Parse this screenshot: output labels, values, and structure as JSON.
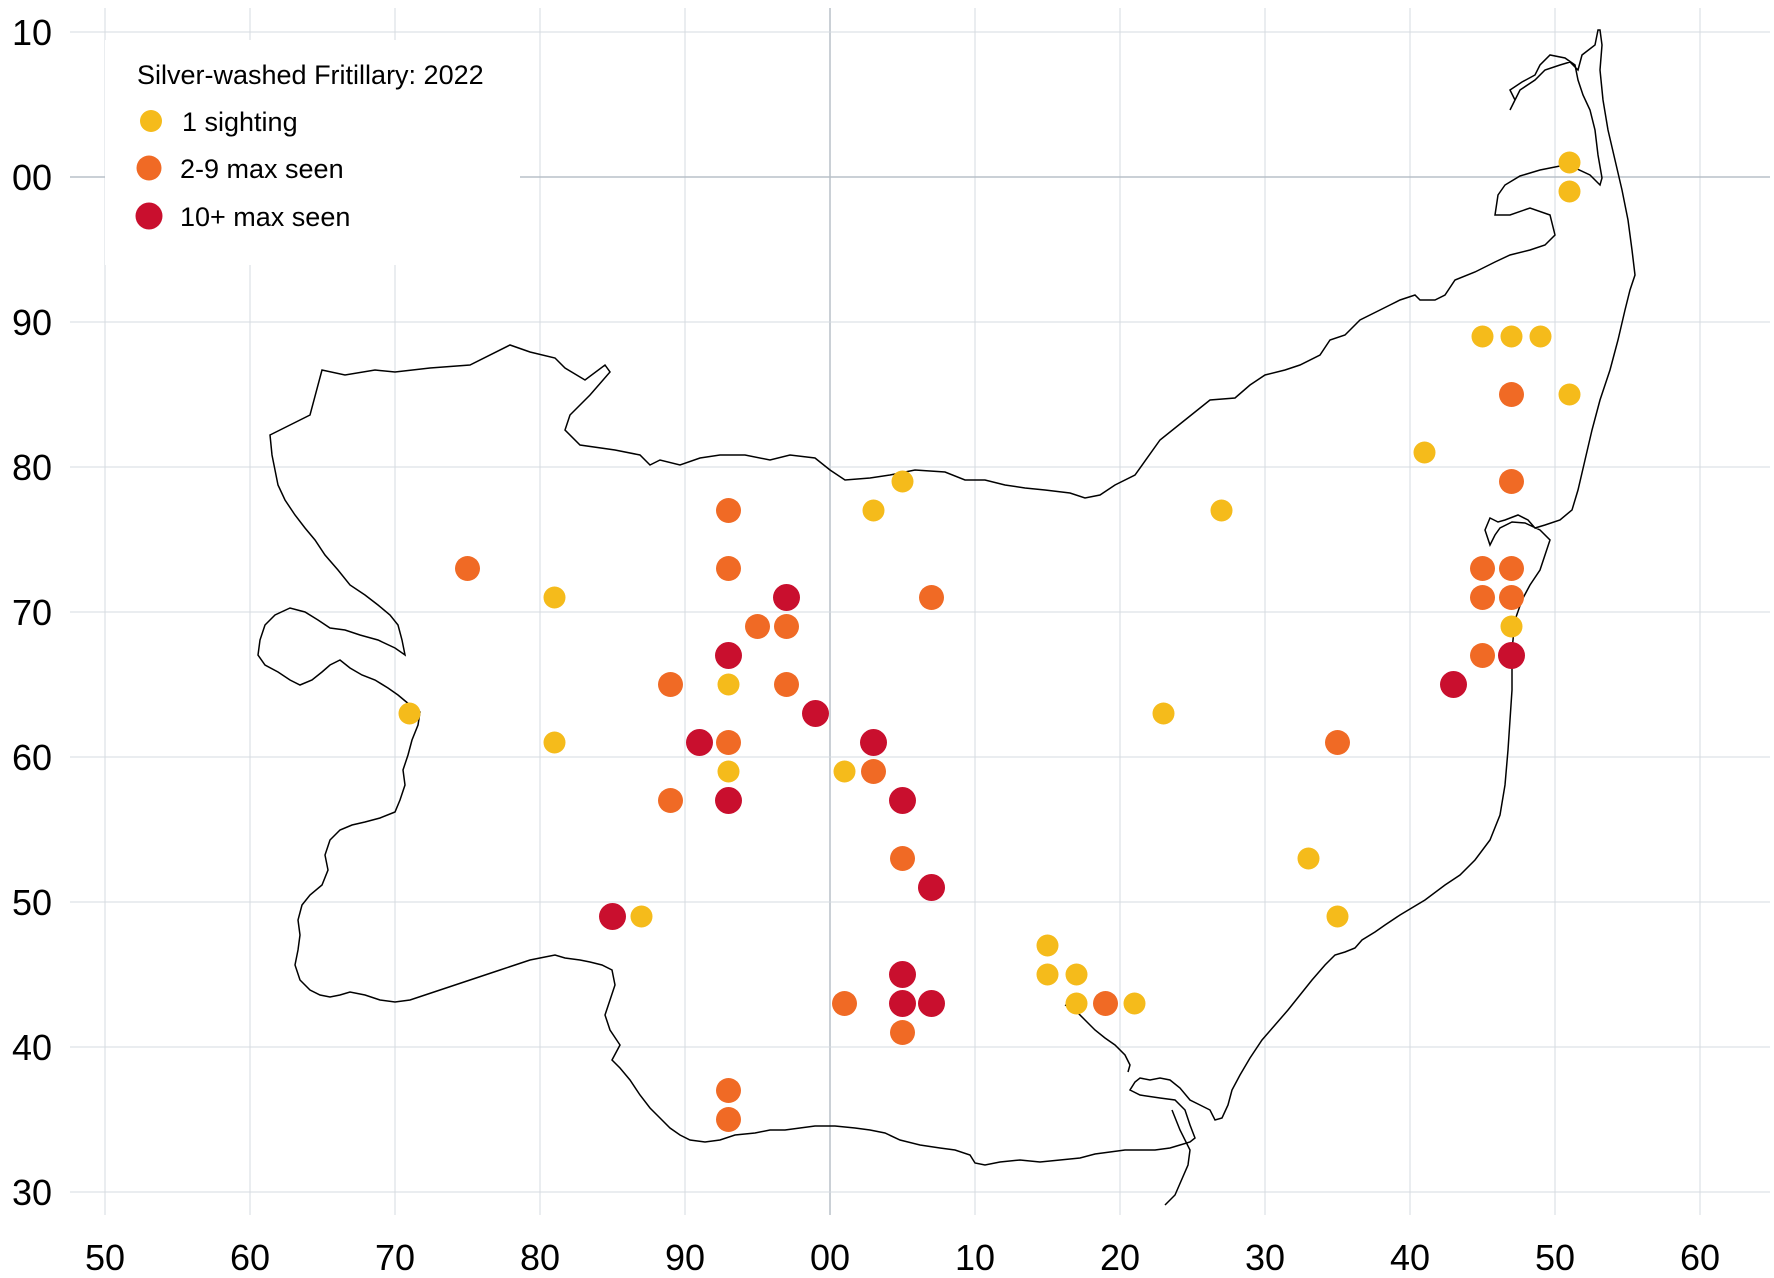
{
  "legend": {
    "title": "Silver-washed Fritillary:  2022",
    "items": [
      {
        "label": "1 sighting",
        "color": "#f5bb1b",
        "size": "small"
      },
      {
        "label": "2-9 max seen",
        "color": "#f06a25",
        "size": "medium"
      },
      {
        "label": "10+ max seen",
        "color": "#c90f2e",
        "size": "large"
      }
    ]
  },
  "axes": {
    "x_ticks": [
      "50",
      "60",
      "70",
      "80",
      "90",
      "00",
      "10",
      "20",
      "30",
      "40",
      "50",
      "60"
    ],
    "y_ticks": [
      "10",
      "00",
      "90",
      "80",
      "70",
      "60",
      "50",
      "40",
      "30"
    ],
    "x_range": [
      50,
      160
    ],
    "y_range": [
      30,
      110
    ],
    "grid": true,
    "major_gridlines": {
      "x": 100,
      "y": 100
    }
  },
  "chart_data": {
    "type": "scatter",
    "title": "Silver-washed Fritillary:  2022",
    "xlabel": "",
    "ylabel": "",
    "xlim": [
      50,
      160
    ],
    "ylim": [
      30,
      110
    ],
    "series": [
      {
        "name": "1 sighting",
        "color": "#f5bb1b",
        "points": [
          [
            151,
            101
          ],
          [
            151,
            99
          ],
          [
            145,
            89
          ],
          [
            147,
            89
          ],
          [
            149,
            89
          ],
          [
            151,
            85
          ],
          [
            141,
            81
          ],
          [
            105,
            79
          ],
          [
            103,
            77
          ],
          [
            127,
            77
          ],
          [
            81,
            71
          ],
          [
            147,
            69
          ],
          [
            71,
            63
          ],
          [
            93,
            65
          ],
          [
            123,
            63
          ],
          [
            81,
            61
          ],
          [
            93,
            59
          ],
          [
            101,
            59
          ],
          [
            133,
            53
          ],
          [
            87,
            49
          ],
          [
            135,
            49
          ],
          [
            115,
            47
          ],
          [
            115,
            45
          ],
          [
            117,
            45
          ],
          [
            117,
            43
          ],
          [
            121,
            43
          ]
        ]
      },
      {
        "name": "2-9 max seen",
        "color": "#f06a25",
        "points": [
          [
            147,
            85
          ],
          [
            147,
            79
          ],
          [
            93,
            77
          ],
          [
            75,
            73
          ],
          [
            93,
            73
          ],
          [
            145,
            73
          ],
          [
            147,
            73
          ],
          [
            107,
            71
          ],
          [
            145,
            71
          ],
          [
            147,
            71
          ],
          [
            95,
            69
          ],
          [
            97,
            69
          ],
          [
            145,
            67
          ],
          [
            89,
            65
          ],
          [
            97,
            65
          ],
          [
            93,
            61
          ],
          [
            135,
            61
          ],
          [
            103,
            59
          ],
          [
            89,
            57
          ],
          [
            105,
            53
          ],
          [
            101,
            43
          ],
          [
            119,
            43
          ],
          [
            105,
            41
          ],
          [
            93,
            37
          ],
          [
            93,
            35
          ]
        ]
      },
      {
        "name": "10+ max seen",
        "color": "#c90f2e",
        "points": [
          [
            97,
            71
          ],
          [
            93,
            67
          ],
          [
            147,
            67
          ],
          [
            143,
            65
          ],
          [
            99,
            63
          ],
          [
            91,
            61
          ],
          [
            103,
            61
          ],
          [
            93,
            57
          ],
          [
            105,
            57
          ],
          [
            107,
            51
          ],
          [
            85,
            49
          ],
          [
            105,
            45
          ],
          [
            105,
            43
          ],
          [
            107,
            43
          ]
        ]
      }
    ]
  }
}
